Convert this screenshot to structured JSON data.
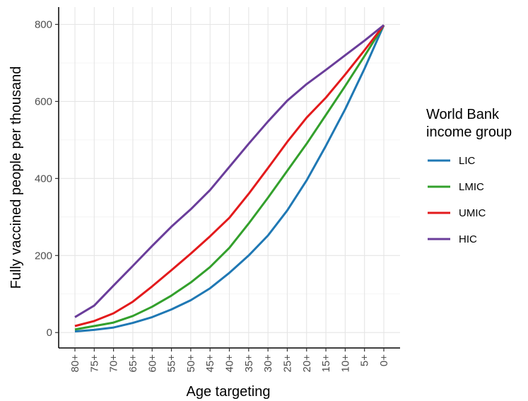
{
  "chart_data": {
    "type": "line",
    "xlabel": "Age targeting",
    "ylabel": "Fully vaccined people per thousand",
    "ylim": [
      -40,
      845
    ],
    "yticks": [
      0,
      200,
      400,
      600,
      800
    ],
    "categories": [
      "80+",
      "75+",
      "70+",
      "65+",
      "60+",
      "55+",
      "50+",
      "45+",
      "40+",
      "35+",
      "30+",
      "25+",
      "20+",
      "15+",
      "10+",
      "5+",
      "0+"
    ],
    "legend": {
      "title_line1": "World Bank",
      "title_line2": "income group",
      "position": "right"
    },
    "grid": true,
    "series": [
      {
        "name": "LIC",
        "color": "#1f78b4",
        "values": [
          3,
          7,
          13,
          25,
          40,
          60,
          84,
          115,
          155,
          200,
          252,
          317,
          395,
          485,
          580,
          685,
          798
        ]
      },
      {
        "name": "LMIC",
        "color": "#33a02c",
        "values": [
          8,
          17,
          26,
          43,
          67,
          96,
          130,
          170,
          220,
          283,
          350,
          420,
          490,
          565,
          640,
          718,
          798
        ]
      },
      {
        "name": "UMIC",
        "color": "#e31a1c",
        "values": [
          17,
          30,
          50,
          80,
          120,
          162,
          205,
          250,
          298,
          360,
          427,
          495,
          558,
          610,
          670,
          733,
          798
        ]
      },
      {
        "name": "HIC",
        "color": "#6a3d9a",
        "values": [
          40,
          70,
          122,
          173,
          225,
          275,
          320,
          370,
          430,
          490,
          548,
          602,
          645,
          682,
          720,
          758,
          798
        ]
      }
    ]
  }
}
